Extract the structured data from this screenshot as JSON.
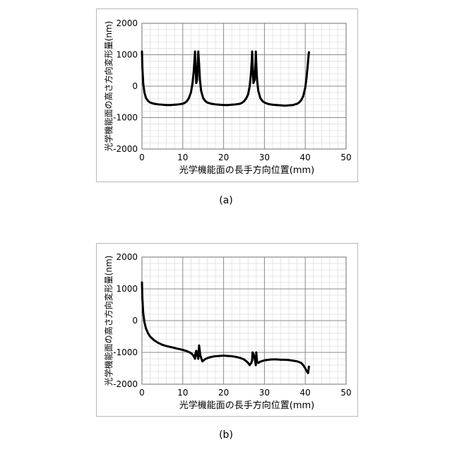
{
  "figures": [
    {
      "caption": "(a)"
    },
    {
      "caption": "(b)"
    }
  ],
  "chart_data": [
    {
      "type": "line",
      "title": "",
      "xlabel": "光学機能面の長手方向位置(mm)",
      "ylabel": "光学機能面の高さ方向変形量(nm)",
      "xlim": [
        0,
        50
      ],
      "ylim": [
        -2000,
        2000
      ],
      "xticks": [
        0,
        10,
        20,
        30,
        40,
        50
      ],
      "yticks": [
        -2000,
        -1000,
        0,
        1000,
        2000
      ],
      "grid": "major and minor",
      "legend": "none",
      "line_color": "#000000",
      "series": [
        {
          "x": [
            0,
            0.1,
            0.3,
            0.6,
            1,
            1.5,
            2,
            3,
            4,
            5,
            6,
            7,
            8,
            9,
            10,
            10.5,
            11,
            11.5,
            12,
            12.4,
            12.7,
            12.9,
            13.0,
            13.1,
            13.3,
            13.5,
            13.7,
            13.8,
            14.0,
            14.2,
            14.5,
            15,
            15.5,
            16,
            17,
            18,
            19,
            20,
            21,
            22,
            23,
            24,
            24.5,
            25,
            25.5,
            26,
            26.4,
            26.7,
            26.9,
            27.0,
            27.1,
            27.3,
            27.6,
            27.8,
            27.9,
            28.0,
            28.2,
            28.5,
            29,
            29.5,
            30,
            31,
            32,
            33,
            34,
            35,
            36,
            37,
            38,
            38.5,
            39,
            39.5,
            40,
            40.3,
            40.6,
            40.8,
            40.9
          ],
          "y": [
            1100,
            600,
            100,
            -200,
            -380,
            -470,
            -520,
            -560,
            -580,
            -590,
            -600,
            -600,
            -590,
            -580,
            -560,
            -530,
            -480,
            -380,
            -200,
            100,
            500,
            900,
            1100,
            700,
            100,
            200,
            800,
            1100,
            700,
            200,
            -150,
            -380,
            -470,
            -520,
            -560,
            -580,
            -590,
            -600,
            -600,
            -590,
            -580,
            -560,
            -530,
            -480,
            -400,
            -260,
            0,
            400,
            800,
            1100,
            700,
            100,
            200,
            700,
            1100,
            700,
            200,
            -150,
            -380,
            -470,
            -520,
            -570,
            -590,
            -600,
            -610,
            -620,
            -610,
            -600,
            -560,
            -520,
            -450,
            -320,
            -50,
            250,
            650,
            950,
            1080
          ]
        }
      ]
    },
    {
      "type": "line",
      "title": "",
      "xlabel": "光学機能面の長手方向位置(mm)",
      "ylabel": "光学機能面の高さ方向変形量(nm)",
      "xlim": [
        0,
        50
      ],
      "ylim": [
        -2000,
        2000
      ],
      "xticks": [
        0,
        10,
        20,
        30,
        40,
        50
      ],
      "yticks": [
        -2000,
        -1000,
        0,
        1000,
        2000
      ],
      "grid": "major and minor",
      "legend": "none",
      "line_color": "#000000",
      "series": [
        {
          "x": [
            0,
            0.1,
            0.3,
            0.6,
            1,
            1.5,
            2,
            3,
            4,
            5,
            6,
            7,
            8,
            9,
            10,
            11,
            12,
            12.5,
            12.8,
            13.0,
            13.1,
            13.3,
            13.6,
            13.8,
            13.9,
            14.0,
            14.3,
            14.8,
            15.5,
            16,
            17,
            18,
            19,
            20,
            21,
            22,
            23,
            24,
            25,
            25.5,
            26,
            26.4,
            26.8,
            27.0,
            27.1,
            27.4,
            27.7,
            27.9,
            28.0,
            28.2,
            28.5,
            29,
            30,
            31,
            32,
            33,
            34,
            35,
            36,
            37,
            38,
            39,
            39.5,
            40,
            40.4,
            40.7,
            40.9
          ],
          "y": [
            1200,
            700,
            250,
            -50,
            -250,
            -400,
            -500,
            -620,
            -700,
            -760,
            -800,
            -830,
            -860,
            -890,
            -920,
            -960,
            -1020,
            -1080,
            -1150,
            -1200,
            -1050,
            -950,
            -1100,
            -1200,
            -950,
            -780,
            -1100,
            -1280,
            -1210,
            -1180,
            -1140,
            -1120,
            -1110,
            -1100,
            -1110,
            -1120,
            -1140,
            -1170,
            -1220,
            -1270,
            -1330,
            -1400,
            -1320,
            -1250,
            -1000,
            -1080,
            -1250,
            -1400,
            -1000,
            -1300,
            -1330,
            -1290,
            -1250,
            -1230,
            -1220,
            -1220,
            -1230,
            -1230,
            -1240,
            -1260,
            -1280,
            -1330,
            -1400,
            -1500,
            -1600,
            -1650,
            -1450
          ]
        }
      ]
    }
  ]
}
